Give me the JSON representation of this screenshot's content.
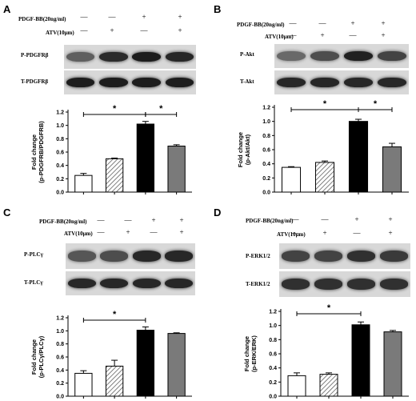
{
  "panels": [
    {
      "id": "A",
      "treatments": [
        "PDGF-BB(20ng/ml)",
        "ATV(10μm)"
      ],
      "symbols": [
        [
          "—",
          "—",
          "+",
          "+"
        ],
        [
          "—",
          "+",
          "—",
          "+"
        ]
      ],
      "blots": [
        "P-PDGFRβ",
        "T-PDGFRβ"
      ],
      "bands": [
        [
          0.55,
          0.82,
          0.9,
          0.85
        ],
        [
          0.9,
          0.9,
          0.9,
          0.9
        ]
      ]
    },
    {
      "id": "B",
      "treatments": [
        "PDGF-BB(20ng/ml)",
        "ATV(10μm)"
      ],
      "symbols": [
        [
          "—",
          "—",
          "+",
          "+"
        ],
        [
          "—",
          "+",
          "—",
          "+"
        ]
      ],
      "blots": [
        "P-Akt",
        "T-Akt"
      ],
      "bands": [
        [
          0.5,
          0.65,
          0.88,
          0.7
        ],
        [
          0.85,
          0.85,
          0.85,
          0.85
        ]
      ]
    },
    {
      "id": "C",
      "treatments": [
        "PDGF-BB(20ng/ml)",
        "ATV(10μm)"
      ],
      "symbols": [
        [
          "—",
          "—",
          "+",
          "+"
        ],
        [
          "—",
          "+",
          "—",
          "+"
        ]
      ],
      "blots": [
        "P-PLCγ",
        "T-PLCγ"
      ],
      "bands": [
        [
          0.6,
          0.65,
          0.85,
          0.85
        ],
        [
          0.85,
          0.85,
          0.85,
          0.85
        ]
      ]
    },
    {
      "id": "D",
      "treatments": [
        "PDGF-BB(20ng/ml)",
        "ATV(10μm)"
      ],
      "symbols": [
        [
          "—",
          "—",
          "+",
          "+"
        ],
        [
          "—",
          "+",
          "—",
          "+"
        ]
      ],
      "blots": [
        "P-ERK1/2",
        "T-ERK1/2"
      ],
      "bands": [
        [
          0.7,
          0.7,
          0.8,
          0.75
        ],
        [
          0.8,
          0.8,
          0.8,
          0.8
        ]
      ]
    }
  ],
  "chart_data": [
    {
      "type": "bar",
      "panel": "A",
      "categories": [
        "",
        "",
        "",
        ""
      ],
      "values": [
        0.25,
        0.5,
        1.02,
        0.69
      ],
      "errors": [
        0.03,
        0.01,
        0.04,
        0.02
      ],
      "fills": [
        "white",
        "hatch",
        "black",
        "gray"
      ],
      "ylabel": "Fold change (p-PDGFRB/PDGFRB)",
      "ylim": [
        0,
        1.2
      ],
      "yticks": [
        "0.0",
        "0.2",
        "0.4",
        "0.6",
        "0.8",
        "1.0",
        "1.2"
      ],
      "significance": [
        {
          "from": 0,
          "to": 2,
          "label": "*"
        },
        {
          "from": 2,
          "to": 3,
          "label": "*"
        }
      ]
    },
    {
      "type": "bar",
      "panel": "B",
      "categories": [
        "",
        "",
        "",
        ""
      ],
      "values": [
        0.35,
        0.42,
        1.0,
        0.64
      ],
      "errors": [
        0.01,
        0.02,
        0.03,
        0.05
      ],
      "fills": [
        "white",
        "hatch",
        "black",
        "gray"
      ],
      "ylabel": "Fold change (p-Akt/Akt)",
      "ylim": [
        0,
        1.2
      ],
      "yticks": [
        "0.0",
        "0.2",
        "0.4",
        "0.6",
        "0.8",
        "1.0",
        "1.2"
      ],
      "significance": [
        {
          "from": 0,
          "to": 2,
          "label": "*"
        },
        {
          "from": 2,
          "to": 3,
          "label": "*"
        }
      ]
    },
    {
      "type": "bar",
      "panel": "C",
      "categories": [
        "",
        "",
        "",
        ""
      ],
      "values": [
        0.35,
        0.46,
        1.01,
        0.96
      ],
      "errors": [
        0.04,
        0.09,
        0.05,
        0.01
      ],
      "fills": [
        "white",
        "hatch",
        "black",
        "gray"
      ],
      "ylabel": "Fold change (p-PLCγ/PLCγ)",
      "ylim": [
        0,
        1.2
      ],
      "yticks": [
        "0.0",
        "0.2",
        "0.4",
        "0.6",
        "0.8",
        "1.0",
        "1.2"
      ],
      "significance": [
        {
          "from": 0,
          "to": 2,
          "label": "*"
        }
      ]
    },
    {
      "type": "bar",
      "panel": "D",
      "categories": [
        "",
        "",
        "",
        ""
      ],
      "values": [
        0.29,
        0.31,
        1.01,
        0.91
      ],
      "errors": [
        0.04,
        0.02,
        0.04,
        0.02
      ],
      "fills": [
        "white",
        "hatch",
        "black",
        "gray"
      ],
      "ylabel": "Fold change (p-ERK/ERK)",
      "ylim": [
        0,
        1.2
      ],
      "yticks": [
        "0.0",
        "0.2",
        "0.4",
        "0.6",
        "0.8",
        "1.0",
        "1.2"
      ],
      "significance": [
        {
          "from": 0,
          "to": 2,
          "label": "*"
        }
      ]
    }
  ]
}
